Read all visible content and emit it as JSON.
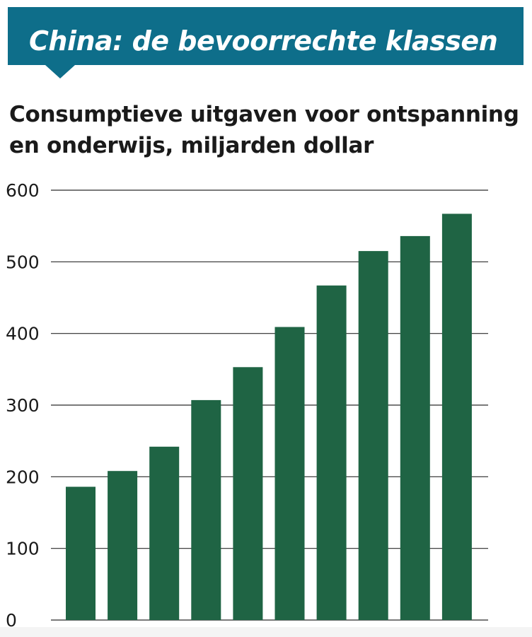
{
  "header": {
    "title": "China: de bevoorrechte klassen"
  },
  "chart_data": {
    "type": "bar",
    "title": "Consumptieve uitgaven voor ontspanning en onderwijs, miljarden dollar",
    "values": [
      186,
      208,
      242,
      307,
      353,
      409,
      467,
      515,
      536,
      567
    ],
    "ylim": [
      0,
      600
    ],
    "yticks": [
      0,
      100,
      200,
      300,
      400,
      500,
      600
    ],
    "grid": true,
    "colors": {
      "bar": "#1f6444",
      "grid": "#2a2a2a",
      "banner": "#0e6e8a"
    }
  }
}
